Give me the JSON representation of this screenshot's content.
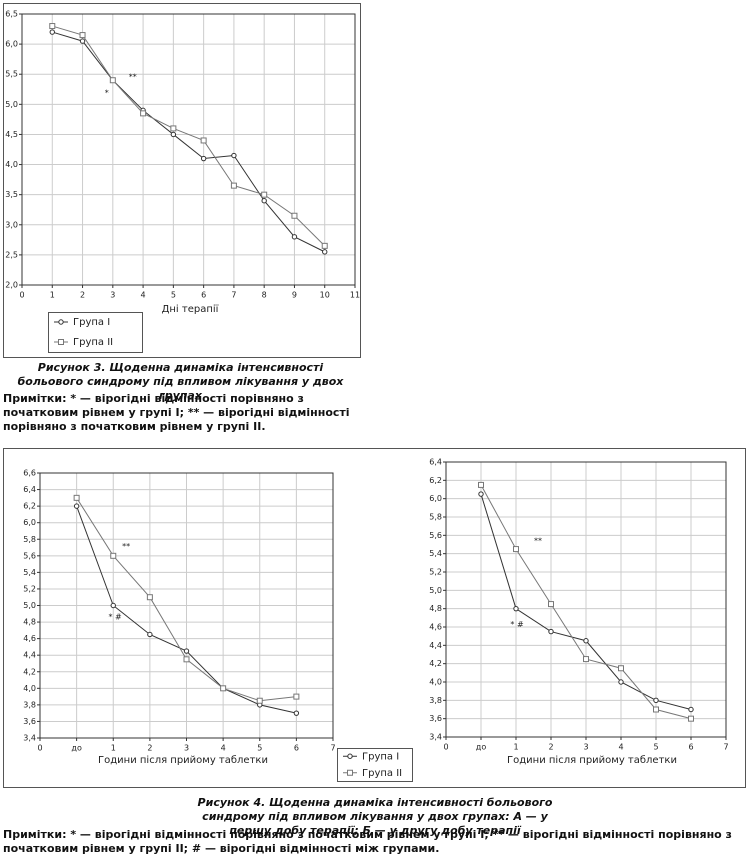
{
  "chart_data": [
    {
      "type": "line",
      "x_label": "Дні терапії",
      "legend": "bottom-left",
      "grid": true,
      "xlim": [
        0,
        11
      ],
      "xticks": [
        0,
        1,
        2,
        3,
        4,
        5,
        6,
        7,
        8,
        9,
        10,
        11
      ],
      "ylim": [
        2.0,
        6.5
      ],
      "yticks": [
        {
          "value": 2.0,
          "label": "2,0"
        },
        {
          "value": 2.5,
          "label": "2,5"
        },
        {
          "value": 3.0,
          "label": "3,0"
        },
        {
          "value": 3.5,
          "label": "3,5"
        },
        {
          "value": 4.0,
          "label": "4,0"
        },
        {
          "value": 4.5,
          "label": "4,5"
        },
        {
          "value": 5.0,
          "label": "5,0"
        },
        {
          "value": 5.5,
          "label": "5,5"
        },
        {
          "value": 6.0,
          "label": "6,0"
        },
        {
          "value": 6.5,
          "label": "6,5"
        }
      ],
      "x": [
        1,
        2,
        3,
        4,
        5,
        6,
        7,
        8,
        9,
        10
      ],
      "series": [
        {
          "name": "Група I",
          "color": "#333333",
          "marker": "circle",
          "values": [
            6.2,
            6.05,
            5.4,
            4.9,
            4.5,
            4.1,
            4.15,
            3.4,
            2.8,
            2.55
          ]
        },
        {
          "name": "Група II",
          "color": "#777777",
          "marker": "square",
          "values": [
            6.3,
            6.15,
            5.4,
            4.85,
            4.6,
            4.4,
            3.65,
            3.5,
            3.15,
            2.65
          ]
        }
      ],
      "annotations": [
        {
          "text": "*",
          "x": 2.8,
          "y": 5.19
        },
        {
          "text": "**",
          "x": 3.66,
          "y": 5.45
        }
      ]
    },
    {
      "type": "line",
      "x_label": "Години після прийому таблетки",
      "legend": "below-right",
      "grid": true,
      "xlim": [
        0,
        8
      ],
      "xticks": [
        0,
        {
          "value": 1,
          "label": "до"
        },
        {
          "value": 2,
          "label": "1"
        },
        {
          "value": 3,
          "label": "2"
        },
        {
          "value": 4,
          "label": "3"
        },
        {
          "value": 5,
          "label": "4"
        },
        {
          "value": 6,
          "label": "5"
        },
        {
          "value": 7,
          "label": "6"
        },
        {
          "value": 8,
          "label": "7"
        }
      ],
      "ylim": [
        3.4,
        6.6
      ],
      "yticks": [
        {
          "value": 3.4,
          "label": "3,4"
        },
        {
          "value": 3.6,
          "label": "3,6"
        },
        {
          "value": 3.8,
          "label": "3,8"
        },
        {
          "value": 4.0,
          "label": "4,0"
        },
        {
          "value": 4.2,
          "label": "4,2"
        },
        {
          "value": 4.4,
          "label": "4,4"
        },
        {
          "value": 4.6,
          "label": "4,6"
        },
        {
          "value": 4.8,
          "label": "4,8"
        },
        {
          "value": 5.0,
          "label": "5,0"
        },
        {
          "value": 5.2,
          "label": "5,2"
        },
        {
          "value": 5.4,
          "label": "5,4"
        },
        {
          "value": 5.6,
          "label": "5,6"
        },
        {
          "value": 5.8,
          "label": "5,8"
        },
        {
          "value": 6.0,
          "label": "6,0"
        },
        {
          "value": 6.2,
          "label": "6,2"
        },
        {
          "value": 6.4,
          "label": "6,4"
        },
        {
          "value": 6.6,
          "label": "6,6"
        }
      ],
      "x": [
        1,
        2,
        3,
        4,
        5,
        6,
        7
      ],
      "series": [
        {
          "name": "Група I",
          "color": "#333333",
          "marker": "circle",
          "values": [
            6.2,
            5.0,
            4.65,
            4.45,
            4.0,
            3.8,
            3.7
          ]
        },
        {
          "name": "Група II",
          "color": "#777777",
          "marker": "square",
          "values": [
            6.3,
            5.6,
            5.1,
            4.35,
            4.0,
            3.85,
            3.9
          ]
        }
      ],
      "annotations": [
        {
          "text": "**",
          "x": 2.35,
          "y": 5.71
        },
        {
          "text": "* #",
          "x": 2.05,
          "y": 4.86
        }
      ]
    },
    {
      "type": "line",
      "x_label": "Години після прийому таблетки",
      "grid": true,
      "xlim": [
        0,
        8
      ],
      "xticks": [
        0,
        {
          "value": 1,
          "label": "до"
        },
        {
          "value": 2,
          "label": "1"
        },
        {
          "value": 3,
          "label": "2"
        },
        {
          "value": 4,
          "label": "3"
        },
        {
          "value": 5,
          "label": "4"
        },
        {
          "value": 6,
          "label": "5"
        },
        {
          "value": 7,
          "label": "6"
        },
        {
          "value": 8,
          "label": "7"
        }
      ],
      "ylim": [
        3.4,
        6.4
      ],
      "yticks": [
        {
          "value": 3.4,
          "label": "3,4"
        },
        {
          "value": 3.6,
          "label": "3,6"
        },
        {
          "value": 3.8,
          "label": "3,8"
        },
        {
          "value": 4.0,
          "label": "4,0"
        },
        {
          "value": 4.2,
          "label": "4,2"
        },
        {
          "value": 4.4,
          "label": "4,4"
        },
        {
          "value": 4.6,
          "label": "4,6"
        },
        {
          "value": 4.8,
          "label": "4,8"
        },
        {
          "value": 5.0,
          "label": "5,0"
        },
        {
          "value": 5.2,
          "label": "5,2"
        },
        {
          "value": 5.4,
          "label": "5,4"
        },
        {
          "value": 5.6,
          "label": "5,6"
        },
        {
          "value": 5.8,
          "label": "5,8"
        },
        {
          "value": 6.0,
          "label": "6,0"
        },
        {
          "value": 6.2,
          "label": "6,2"
        },
        {
          "value": 6.4,
          "label": "6,4"
        }
      ],
      "x": [
        1,
        2,
        3,
        4,
        5,
        6,
        7
      ],
      "series": [
        {
          "color": "#333333",
          "marker": "circle",
          "values": [
            6.05,
            4.8,
            4.55,
            4.45,
            4.0,
            3.8,
            3.7
          ]
        },
        {
          "color": "#777777",
          "marker": "square",
          "values": [
            6.15,
            5.45,
            4.85,
            4.25,
            4.15,
            3.7,
            3.6
          ]
        }
      ],
      "annotations": [
        {
          "text": "**",
          "x": 2.63,
          "y": 5.54
        },
        {
          "text": "* #",
          "x": 2.03,
          "y": 4.63
        }
      ]
    }
  ],
  "figure3": {
    "caption": "Рисунок 3. Щоденна динаміка інтенсивності больового синдрому під впливом лікування у двох групах",
    "note": "Примітки: * — вірогідні відмінності порівняно з початковим рівнем у групі I; ** — вірогідні відмінності порівняно з початковим рівнем у групі II."
  },
  "figure4": {
    "caption": "Рисунок 4. Щоденна динаміка інтенсивності больового синдрому під впливом лікування у двох групах: А — у першу добу терапії; Б — у другу добу терапії",
    "note": "Примітки: * — вірогідні відмінності порівняно з початковим рівнем у групі I; ** — вірогідні відмінності порівняно з початковим рівнем у групі II; # — вірогідні відмінності між групами."
  }
}
